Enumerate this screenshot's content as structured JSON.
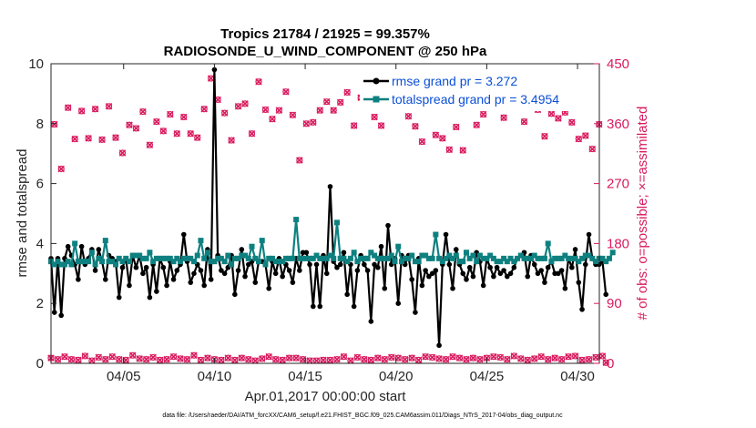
{
  "chart_data": {
    "type": "line",
    "title_line1": "Tropics 21784 / 21925 = 99.357%",
    "title_line2": "RADIOSONDE_U_WIND_COMPONENT @ 250 hPa",
    "xlabel": "Apr.01,2017 00:00:00 start",
    "ylabel_left": "rmse and totalspread",
    "ylabel_right": "# of obs: o=possible; ×=assimilated",
    "xlim": [
      1,
      31.2
    ],
    "ylim_left": [
      0,
      10
    ],
    "ylim_right": [
      0,
      450
    ],
    "x_ticks": [
      {
        "day": 5,
        "label": "04/05"
      },
      {
        "day": 10,
        "label": "04/10"
      },
      {
        "day": 15,
        "label": "04/15"
      },
      {
        "day": 20,
        "label": "04/20"
      },
      {
        "day": 25,
        "label": "04/25"
      },
      {
        "day": 30,
        "label": "04/30"
      }
    ],
    "y_ticks_left": [
      "0",
      "2",
      "4",
      "6",
      "8",
      "10"
    ],
    "y_ticks_right": [
      "0",
      "90",
      "180",
      "270",
      "360",
      "450"
    ],
    "legend": [
      {
        "name": "rmse grand pr = 3.272",
        "color": "#000000"
      },
      {
        "name": "totalspread grand pr = 3.4954",
        "color": "#0e8080"
      }
    ],
    "series": [
      {
        "name": "rmse",
        "color": "#000000",
        "marker": "dot",
        "values": [
          3.5,
          1.7,
          3.5,
          1.6,
          3.5,
          3.9,
          3.6,
          3.3,
          2.8,
          3.9,
          3.3,
          3.5,
          3.8,
          3.1,
          3.8,
          3.4,
          2.8,
          3.6,
          3.5,
          3.4,
          2.2,
          3.2,
          3.5,
          2.6,
          3.6,
          3.2,
          3.6,
          3.0,
          3.2,
          2.2,
          3.3,
          2.4,
          3.5,
          3.2,
          2.6,
          3.4,
          2.8,
          3.1,
          3.3,
          4.3,
          3.4,
          2.7,
          3.0,
          3.3,
          3.1,
          2.6,
          3.8,
          2.8,
          9.8,
          3.6,
          3.1,
          3.0,
          3.2,
          3.6,
          2.3,
          3.1,
          3.8,
          2.9,
          3.3,
          3.4,
          2.7,
          3.4,
          3.4,
          3.3,
          2.5,
          3.4,
          3.0,
          3.5,
          2.9,
          3.3,
          3.1,
          2.7,
          3.5,
          3.1,
          3.7,
          3.7,
          3.3,
          1.9,
          3.3,
          1.9,
          3.6,
          3.0,
          5.9,
          3.4,
          3.2,
          3.3,
          3.7,
          2.3,
          3.3,
          1.9,
          3.1,
          3.6,
          3.3,
          3.1,
          1.4,
          3.3,
          3.2,
          3.9,
          2.5,
          4.6,
          3.3,
          3.5,
          2.0,
          3.6,
          3.3,
          3.6,
          2.8,
          1.7,
          3.5,
          2.6,
          3.1,
          2.9,
          3.0,
          3.1,
          0.6,
          3.3,
          4.3,
          3.3,
          2.5,
          3.8,
          3.3,
          3.0,
          2.8,
          3.2,
          2.9,
          3.7,
          3.4,
          2.6,
          3.5,
          3.2,
          2.9,
          3.2,
          3.0,
          3.1,
          2.9,
          3.0,
          3.2,
          3.5,
          3.6,
          3.7,
          2.9,
          3.6,
          3.3,
          3.0,
          3.1,
          2.7,
          3.2,
          3.4,
          3.0,
          3.0,
          3.1,
          2.5,
          3.5,
          3.2,
          3.8,
          2.7,
          1.8,
          3.3,
          4.3,
          3.5,
          3.3,
          3.3,
          3.4,
          2.3
        ]
      },
      {
        "name": "totalspread",
        "color": "#0e8080",
        "marker": "square",
        "values": [
          3.4,
          3.3,
          3.4,
          3.3,
          3.3,
          3.4,
          3.3,
          4.0,
          3.4,
          3.4,
          3.4,
          3.4,
          3.7,
          3.3,
          3.5,
          3.4,
          4.1,
          3.4,
          3.4,
          3.3,
          3.5,
          3.4,
          3.5,
          3.4,
          3.6,
          3.6,
          3.6,
          3.5,
          3.5,
          3.7,
          3.4,
          3.5,
          3.5,
          3.5,
          3.5,
          3.5,
          3.4,
          3.5,
          3.4,
          3.5,
          3.5,
          3.5,
          3.4,
          3.6,
          4.1,
          3.5,
          3.7,
          3.4,
          3.4,
          3.5,
          3.5,
          3.4,
          3.6,
          3.3,
          3.5,
          3.5,
          3.6,
          3.6,
          3.5,
          3.9,
          3.5,
          3.4,
          4.1,
          3.3,
          3.5,
          3.5,
          3.4,
          3.4,
          3.4,
          3.5,
          3.5,
          3.5,
          4.8,
          3.5,
          3.5,
          3.5,
          3.5,
          3.5,
          3.6,
          3.5,
          3.5,
          3.5,
          3.6,
          3.5,
          4.7,
          3.5,
          3.5,
          3.4,
          3.5,
          3.7,
          3.4,
          3.5,
          3.5,
          3.5,
          3.7,
          3.6,
          3.5,
          3.5,
          3.5,
          3.5,
          3.6,
          3.4,
          3.9,
          3.4,
          3.5,
          3.5,
          3.6,
          3.4,
          3.4,
          3.6,
          3.6,
          3.5,
          3.5,
          4.3,
          3.5,
          3.4,
          3.5,
          3.6,
          3.5,
          3.6,
          3.4,
          3.4,
          3.7,
          3.5,
          3.6,
          3.4,
          3.6,
          3.5,
          3.5,
          3.6,
          3.5,
          3.4,
          3.4,
          3.5,
          3.4,
          3.5,
          3.4,
          3.5,
          3.6,
          3.5,
          3.5,
          3.5,
          3.6,
          3.5,
          3.5,
          3.5,
          4.0,
          3.4,
          3.5,
          3.5,
          3.5,
          3.6,
          3.5,
          3.5,
          3.5,
          3.4,
          3.5,
          3.6,
          3.6,
          3.5,
          3.4,
          3.5,
          3.5,
          3.4,
          3.5,
          3.7
        ]
      }
    ],
    "obs_counts": {
      "color": "#d81b5e",
      "possible": [
        8,
        359,
        6,
        292,
        10,
        384,
        6,
        337,
        5,
        379,
        11,
        338,
        4,
        382,
        9,
        336,
        6,
        386,
        10,
        339,
        6,
        316,
        5,
        358,
        12,
        353,
        7,
        378,
        6,
        328,
        9,
        363,
        5,
        349,
        6,
        374,
        10,
        345,
        7,
        370,
        6,
        345,
        12,
        339,
        5,
        382,
        8,
        428,
        6,
        396,
        5,
        376,
        8,
        335,
        5,
        386,
        8,
        390,
        6,
        345,
        4,
        423,
        7,
        381,
        10,
        367,
        6,
        380,
        5,
        408,
        8,
        373,
        8,
        305,
        6,
        360,
        4,
        362,
        4,
        380,
        5,
        393,
        5,
        380,
        6,
        392,
        10,
        407,
        4,
        357,
        9,
        399,
        6,
        386,
        5,
        370,
        8,
        357,
        6,
        420,
        9,
        395,
        8,
        398,
        6,
        371,
        8,
        356,
        5,
        333,
        10,
        389,
        9,
        343,
        7,
        338,
        6,
        321,
        10,
        355,
        8,
        320,
        6,
        395,
        8,
        358,
        6,
        374,
        8,
        385,
        10,
        402,
        9,
        369,
        6,
        399,
        11,
        392,
        7,
        363,
        5,
        400,
        7,
        381,
        10,
        341,
        6,
        375,
        8,
        368,
        6,
        377,
        10,
        362,
        11,
        337,
        5,
        342,
        6,
        322,
        9,
        359,
        11,
        1
      ]
    },
    "footer": "data file: /Users/raeder/DAI/ATM_forcXX/CAM6_setup/f.e21.FHIST_BGC.f09_025.CAM6assim.011/Diags_NTrS_2017-04/obs_diag_output.nc"
  }
}
